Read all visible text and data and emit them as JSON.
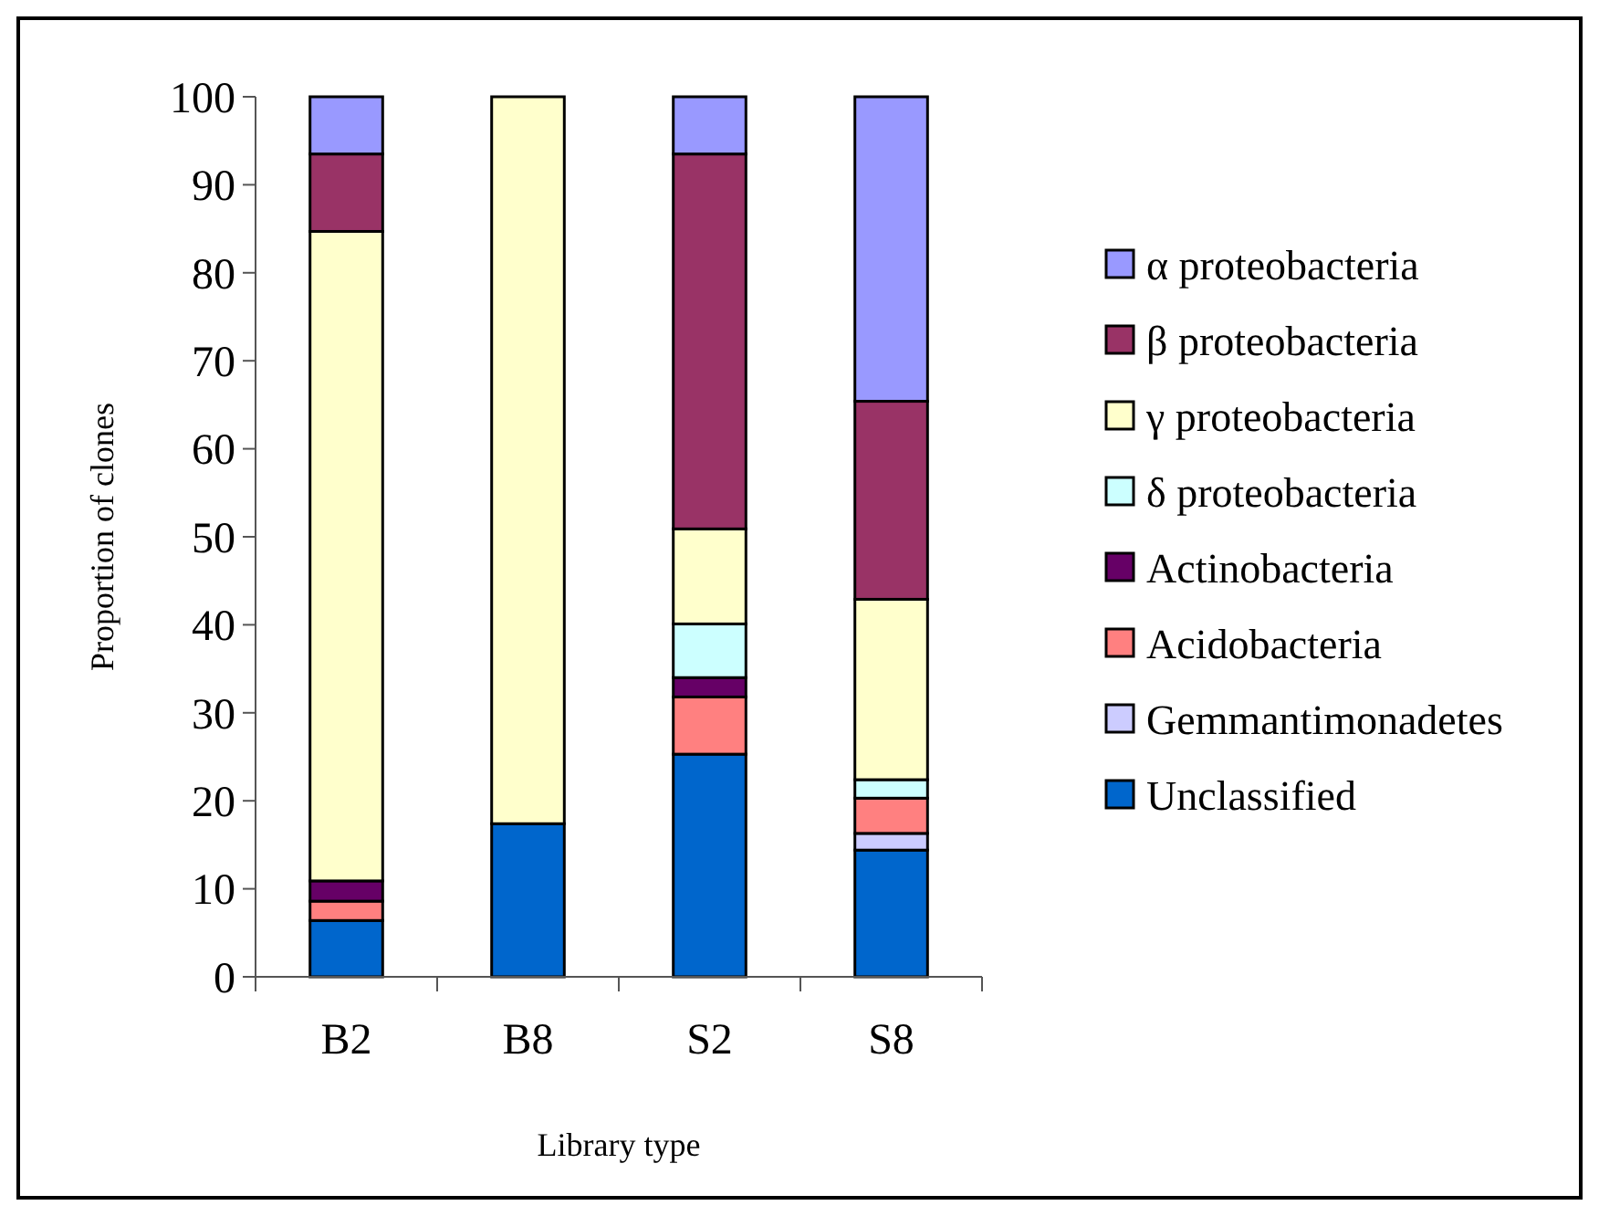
{
  "chart_data": {
    "type": "bar",
    "stacked": true,
    "xlabel": "Library type",
    "ylabel": "Proportion of clones",
    "categories": [
      "B2",
      "B8",
      "S2",
      "S8"
    ],
    "series": [
      {
        "name": "Unclassified",
        "color": "#0066cc",
        "values": [
          6.4,
          17.4,
          25.3,
          14.4
        ]
      },
      {
        "name": "Gemmantimonadetes",
        "color": "#ccccff",
        "values": [
          0,
          0,
          0,
          1.9
        ]
      },
      {
        "name": "Acidobacteria",
        "color": "#ff8080",
        "values": [
          2.2,
          0,
          6.5,
          4.0
        ]
      },
      {
        "name": "Actinobacteria",
        "color": "#660066",
        "values": [
          2.3,
          0,
          2.2,
          0
        ]
      },
      {
        "name": "δ proteobacteria",
        "color": "#ccffff",
        "values": [
          0,
          0,
          6.1,
          2.1
        ]
      },
      {
        "name": "γ proteobacteria",
        "color": "#ffffcc",
        "values": [
          73.8,
          82.6,
          10.8,
          20.5
        ]
      },
      {
        "name": "β proteobacteria",
        "color": "#993366",
        "values": [
          8.8,
          0,
          42.6,
          22.5
        ]
      },
      {
        "name": "α proteobacteria",
        "color": "#9999ff",
        "values": [
          6.5,
          0,
          6.5,
          34.6
        ]
      }
    ],
    "ylim": [
      0,
      100
    ],
    "yticks": [
      0,
      10,
      20,
      30,
      40,
      50,
      60,
      70,
      80,
      90,
      100
    ],
    "grid": false,
    "legend": "right"
  }
}
